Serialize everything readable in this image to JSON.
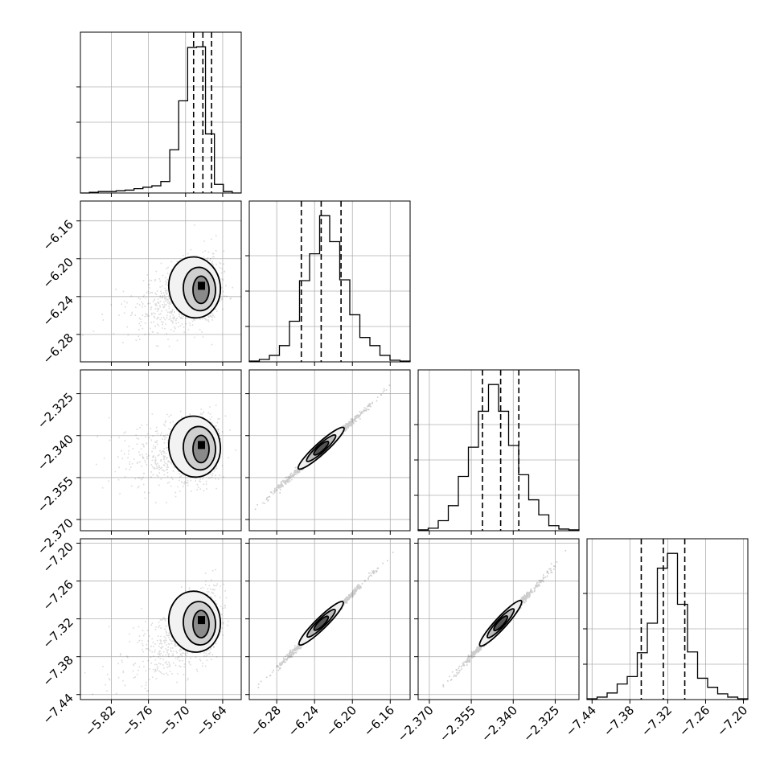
{
  "chart_data": {
    "type": "corner",
    "title": "",
    "parameters": [
      {
        "name": "",
        "range": [
          -5.87,
          -5.61
        ],
        "ticks": [
          -5.82,
          -5.76,
          -5.7,
          -5.64
        ],
        "tick_labels": [
          "−5.82",
          "−5.76",
          "−5.70",
          "−5.64"
        ]
      },
      {
        "name": "",
        "range": [
          -6.309,
          -6.139
        ],
        "ticks": [
          -6.28,
          -6.24,
          -6.2,
          -6.16
        ],
        "tick_labels": [
          "−6.28",
          "−6.24",
          "−6.20",
          "−6.16"
        ]
      },
      {
        "name": "",
        "range": [
          -2.374,
          -2.3165
        ],
        "ticks": [
          -2.37,
          -2.355,
          -2.34,
          -2.325
        ],
        "tick_labels": [
          "−2.370",
          "−2.355",
          "−2.340",
          "−2.325"
        ]
      },
      {
        "name": "",
        "range": [
          -7.448,
          -7.193
        ],
        "ticks": [
          -7.44,
          -7.38,
          -7.32,
          -7.26,
          -7.2
        ],
        "tick_labels": [
          "−7.44",
          "−7.38",
          "−7.32",
          "−7.26",
          "−7.20"
        ]
      }
    ],
    "quantiles": [
      [
        -5.687,
        -5.672,
        -5.658
      ],
      [
        -6.254,
        -6.233,
        -6.212
      ],
      [
        -2.351,
        -2.3445,
        -2.338
      ],
      [
        -7.362,
        -7.327,
        -7.293
      ]
    ],
    "histograms": [
      {
        "counts": [
          0,
          1,
          2,
          2,
          3,
          4,
          6,
          8,
          10,
          16,
          60,
          128,
          202,
          203,
          82,
          12,
          2,
          0
        ]
      },
      {
        "counts": [
          1,
          3,
          8,
          20,
          50,
          100,
          133,
          180,
          148,
          101,
          58,
          30,
          20,
          8,
          2,
          1
        ]
      },
      {
        "counts": [
          1,
          3,
          12,
          30,
          65,
          100,
          143,
          175,
          143,
          102,
          67,
          37,
          19,
          6,
          2,
          1
        ]
      },
      {
        "counts": [
          1,
          3,
          8,
          19,
          28,
          57,
          93,
          160,
          178,
          116,
          58,
          26,
          15,
          7,
          3,
          1
        ]
      }
    ],
    "joint": [
      {
        "pair": [
          0,
          1
        ],
        "kind": "blob",
        "mode": [
          -5.675,
          -6.232
        ],
        "sx": [
          0.03,
          0.014
        ],
        "sy": 0.016,
        "tilt": 0.35
      },
      {
        "pair": [
          0,
          2
        ],
        "kind": "blob",
        "mode": [
          -5.675,
          -2.3445
        ],
        "sx": [
          0.03,
          0.014
        ],
        "sy": 0.0055,
        "tilt": 0.13
      },
      {
        "pair": [
          0,
          3
        ],
        "kind": "blob",
        "mode": [
          -5.675,
          -7.327
        ],
        "sx": [
          0.03,
          0.014
        ],
        "sy": 0.025,
        "tilt": 0.55
      },
      {
        "pair": [
          1,
          2
        ],
        "kind": "linear",
        "slope": 0.306,
        "center": [
          -6.233,
          -2.3445
        ]
      },
      {
        "pair": [
          1,
          3
        ],
        "kind": "linear",
        "slope": 1.47,
        "center": [
          -6.233,
          -7.327
        ]
      },
      {
        "pair": [
          2,
          3
        ],
        "kind": "linear",
        "slope": 4.83,
        "center": [
          -2.3445,
          -7.327
        ]
      }
    ]
  }
}
